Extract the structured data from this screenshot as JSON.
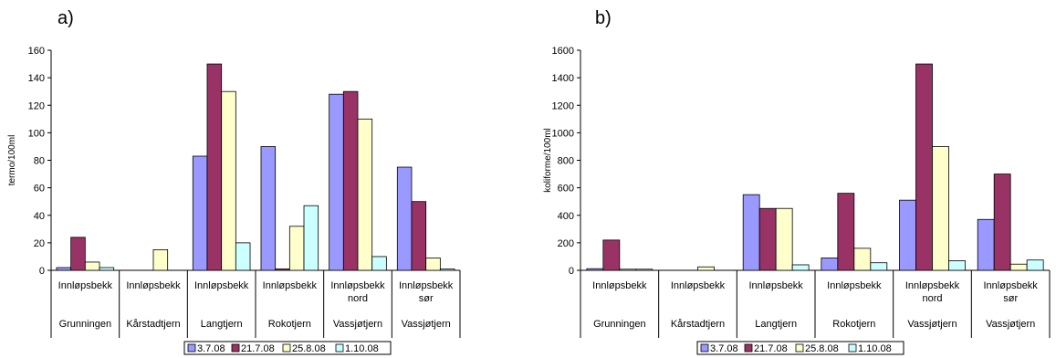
{
  "legend": [
    "3.7.08",
    "21.7.08",
    "25.8.08",
    "1.10.08"
  ],
  "colors": {
    "series": [
      "#9999ff",
      "#993366",
      "#ffffcc",
      "#ccffff"
    ],
    "bar_stroke": "#000000",
    "axis": "#000000",
    "background": "#ffffff"
  },
  "charts": [
    {
      "label": "a)",
      "ylabel": "termo/100ml",
      "yticks": [
        "0",
        "20",
        "40",
        "60",
        "80",
        "100",
        "120",
        "140",
        "160"
      ]
    },
    {
      "label": "b)",
      "ylabel": "koliforme/100ml",
      "yticks": [
        "0",
        "200",
        "400",
        "600",
        "800",
        "1000",
        "1200",
        "1400",
        "1600"
      ]
    }
  ],
  "chart_data": [
    {
      "type": "bar",
      "title": "a)",
      "ylabel": "termo/100ml",
      "xlabel": "",
      "ylim": [
        0,
        160
      ],
      "grid": false,
      "legend_position": "bottom",
      "categories": [
        [
          "Innløpsbekk",
          "Grunningen"
        ],
        [
          "Innløpsbekk",
          "Kårstadtjern"
        ],
        [
          "Innløpsbekk",
          "Langtjern"
        ],
        [
          "Innløpsbekk",
          "Rokotjern"
        ],
        [
          "Innløpsbekk nord",
          "Vassjøtjern"
        ],
        [
          "Innløpsbekk sør",
          "Vassjøtjern"
        ]
      ],
      "series": [
        {
          "name": "3.7.08",
          "values": [
            2,
            0,
            83,
            90,
            128,
            75
          ]
        },
        {
          "name": "21.7.08",
          "values": [
            24,
            0,
            150,
            1,
            130,
            50
          ]
        },
        {
          "name": "25.8.08",
          "values": [
            6,
            15,
            130,
            32,
            110,
            9
          ]
        },
        {
          "name": "1.10.08",
          "values": [
            2,
            0,
            20,
            47,
            10,
            1
          ]
        }
      ]
    },
    {
      "type": "bar",
      "title": "b)",
      "ylabel": "koliforme/100ml",
      "xlabel": "",
      "ylim": [
        0,
        1600
      ],
      "grid": false,
      "legend_position": "bottom",
      "categories": [
        [
          "Innløpsbekk",
          "Grunningen"
        ],
        [
          "Innløpsbekk",
          "Kårstadtjern"
        ],
        [
          "Innløpsbekk",
          "Langtjern"
        ],
        [
          "Innløpsbekk",
          "Rokotjern"
        ],
        [
          "Innløpsbekk nord",
          "Vassjøtjern"
        ],
        [
          "Innløpsbekk sør",
          "Vassjøtjern"
        ]
      ],
      "series": [
        {
          "name": "3.7.08",
          "values": [
            12,
            0,
            550,
            90,
            510,
            370
          ]
        },
        {
          "name": "21.7.08",
          "values": [
            220,
            0,
            450,
            560,
            1500,
            700
          ]
        },
        {
          "name": "25.8.08",
          "values": [
            8,
            25,
            450,
            160,
            900,
            45
          ]
        },
        {
          "name": "1.10.08",
          "values": [
            8,
            0,
            40,
            55,
            70,
            75
          ]
        }
      ]
    }
  ]
}
